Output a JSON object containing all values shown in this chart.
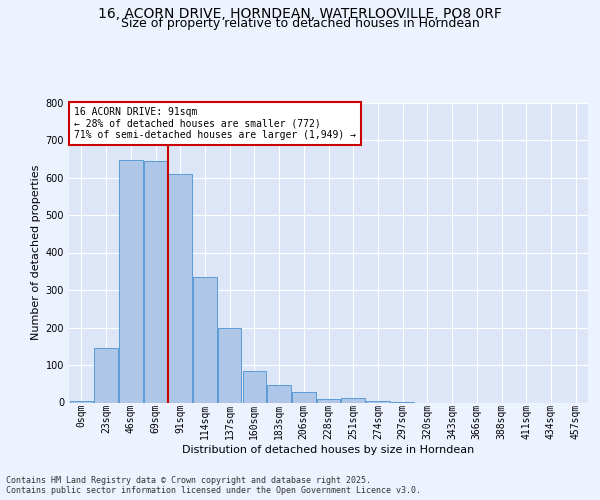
{
  "title_line1": "16, ACORN DRIVE, HORNDEAN, WATERLOOVILLE, PO8 0RF",
  "title_line2": "Size of property relative to detached houses in Horndean",
  "xlabel": "Distribution of detached houses by size in Horndean",
  "ylabel": "Number of detached properties",
  "bar_labels": [
    "0sqm",
    "23sqm",
    "46sqm",
    "69sqm",
    "91sqm",
    "114sqm",
    "137sqm",
    "160sqm",
    "183sqm",
    "206sqm",
    "228sqm",
    "251sqm",
    "274sqm",
    "297sqm",
    "320sqm",
    "343sqm",
    "366sqm",
    "388sqm",
    "411sqm",
    "434sqm",
    "457sqm"
  ],
  "bar_values": [
    5,
    145,
    648,
    643,
    610,
    335,
    199,
    83,
    46,
    28,
    10,
    11,
    5,
    2,
    0,
    0,
    0,
    0,
    0,
    0,
    0
  ],
  "bar_color": "#aec6e8",
  "bar_edge_color": "#5b9bd5",
  "property_line_x": 3.5,
  "annotation_title": "16 ACORN DRIVE: 91sqm",
  "annotation_line2": "← 28% of detached houses are smaller (772)",
  "annotation_line3": "71% of semi-detached houses are larger (1,949) →",
  "annotation_box_color": "#ffffff",
  "annotation_box_edge": "#cc0000",
  "vline_color": "#cc0000",
  "footer_line1": "Contains HM Land Registry data © Crown copyright and database right 2025.",
  "footer_line2": "Contains public sector information licensed under the Open Government Licence v3.0.",
  "ylim": [
    0,
    800
  ],
  "background_color": "#edf2ff",
  "plot_bg_color": "#dce6f7",
  "grid_color": "#ffffff",
  "title_fontsize": 10,
  "subtitle_fontsize": 9,
  "axis_label_fontsize": 8,
  "tick_fontsize": 7
}
